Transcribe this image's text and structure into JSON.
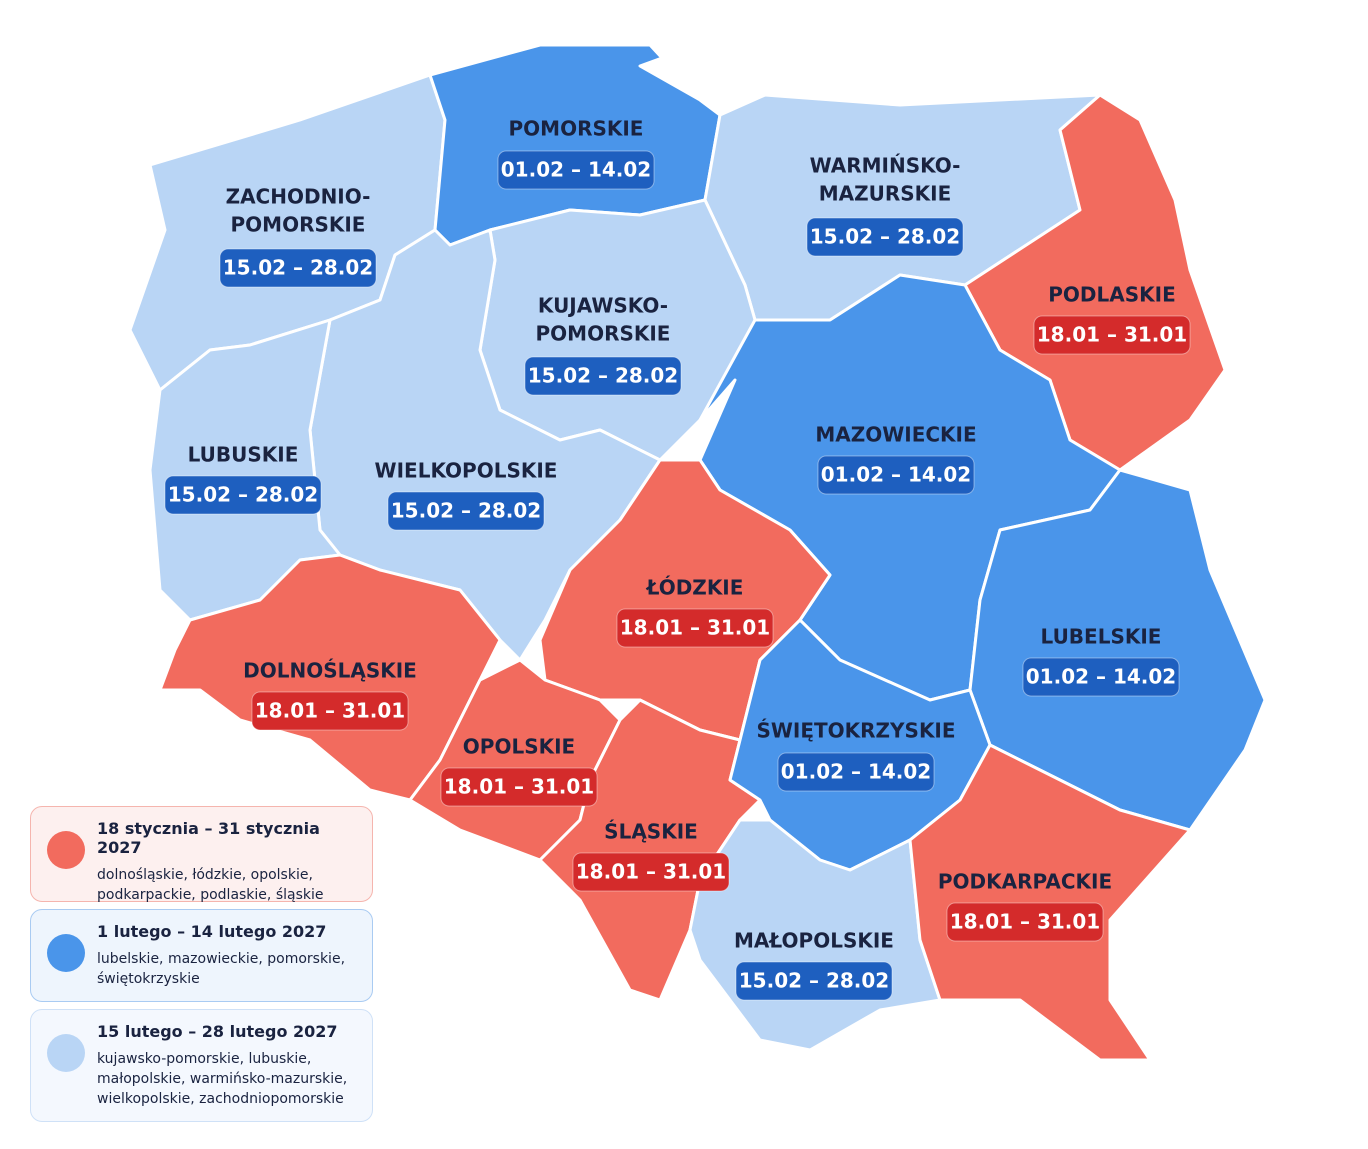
{
  "regions": [
    {
      "name": [
        "ZACHODNIO-",
        "POMORSKIE"
      ],
      "dates": "15.02 – 28.02",
      "color": "#b9d5f5",
      "badge": "#1e5fbf"
    },
    {
      "name": [
        "POMORSKIE"
      ],
      "dates": "01.02 – 14.02",
      "color": "#4a95ea",
      "badge": "#1e5fbf"
    },
    {
      "name": [
        "WARMIŃSKO-",
        "MAZURSKIE"
      ],
      "dates": "15.02 – 28.02",
      "color": "#b9d5f5",
      "badge": "#1e5fbf"
    },
    {
      "name": [
        "PODLASKIE"
      ],
      "dates": "18.01 – 31.01",
      "color": "#f26b5e",
      "badge": "#d42b2b"
    },
    {
      "name": [
        "KUJAWSKO-",
        "POMORSKIE"
      ],
      "dates": "15.02 – 28.02",
      "color": "#b9d5f5",
      "badge": "#1e5fbf"
    },
    {
      "name": [
        "MAZOWIECKIE"
      ],
      "dates": "01.02 – 14.02",
      "color": "#4a95ea",
      "badge": "#1e5fbf"
    },
    {
      "name": [
        "LUBELSKIE"
      ],
      "dates": "01.02 – 14.02",
      "color": "#4a95ea",
      "badge": "#1e5fbf"
    },
    {
      "name": [
        "WIELKOPOLSKIE"
      ],
      "dates": "15.02 – 28.02",
      "color": "#b9d5f5",
      "badge": "#1e5fbf"
    },
    {
      "name": [
        "LUBUSKIE"
      ],
      "dates": "15.02 – 28.02",
      "color": "#b9d5f5",
      "badge": "#1e5fbf"
    },
    {
      "name": [
        "ŁÓDZKIE"
      ],
      "dates": "18.01 – 31.01",
      "color": "#f26b5e",
      "badge": "#d42b2b"
    },
    {
      "name": [
        "DOLNOŚLĄSKIE"
      ],
      "dates": "18.01 – 31.01",
      "color": "#f26b5e",
      "badge": "#d42b2b"
    },
    {
      "name": [
        "OPOLSKIE"
      ],
      "dates": "18.01 – 31.01",
      "color": "#f26b5e",
      "badge": "#d42b2b"
    },
    {
      "name": [
        "ŚLĄSKIE"
      ],
      "dates": "18.01 – 31.01",
      "color": "#f26b5e",
      "badge": "#d42b2b"
    },
    {
      "name": [
        "ŚWIĘTOKRZYSKIE"
      ],
      "dates": "01.02 – 14.02",
      "color": "#4a95ea",
      "badge": "#1e5fbf"
    },
    {
      "name": [
        "MAŁOPOLSKIE"
      ],
      "dates": "15.02 – 28.02",
      "color": "#b9d5f5",
      "badge": "#1e5fbf"
    },
    {
      "name": [
        "PODKARPACKIE"
      ],
      "dates": "18.01 – 31.01",
      "color": "#f26b5e",
      "badge": "#d42b2b"
    }
  ],
  "legend": [
    {
      "title": "18 stycznia – 31 stycznia 2027",
      "description": "dolnośląskie, łódzkie, opolskie, podkarpackie, podlaskie, śląskie",
      "color": "#f26b5e",
      "background": "#fdf0ef",
      "border": "#f5b5ae"
    },
    {
      "title": "1 lutego – 14 lutego 2027",
      "description": "lubelskie, mazowieckie, pomorskie, świętokrzyskie",
      "color": "#4a95ea",
      "background": "#eef5fd",
      "border": "#a9cbf2"
    },
    {
      "title": "15 lutego – 28 lutego 2027",
      "description": "kujawsko-pomorskie, lubuskie, małopolskie, warmińsko-mazurskie, wielkopolskie, zachodniopomorskie",
      "color": "#b9d5f5",
      "background": "#f4f8fe",
      "border": "#cfe1f7"
    }
  ]
}
